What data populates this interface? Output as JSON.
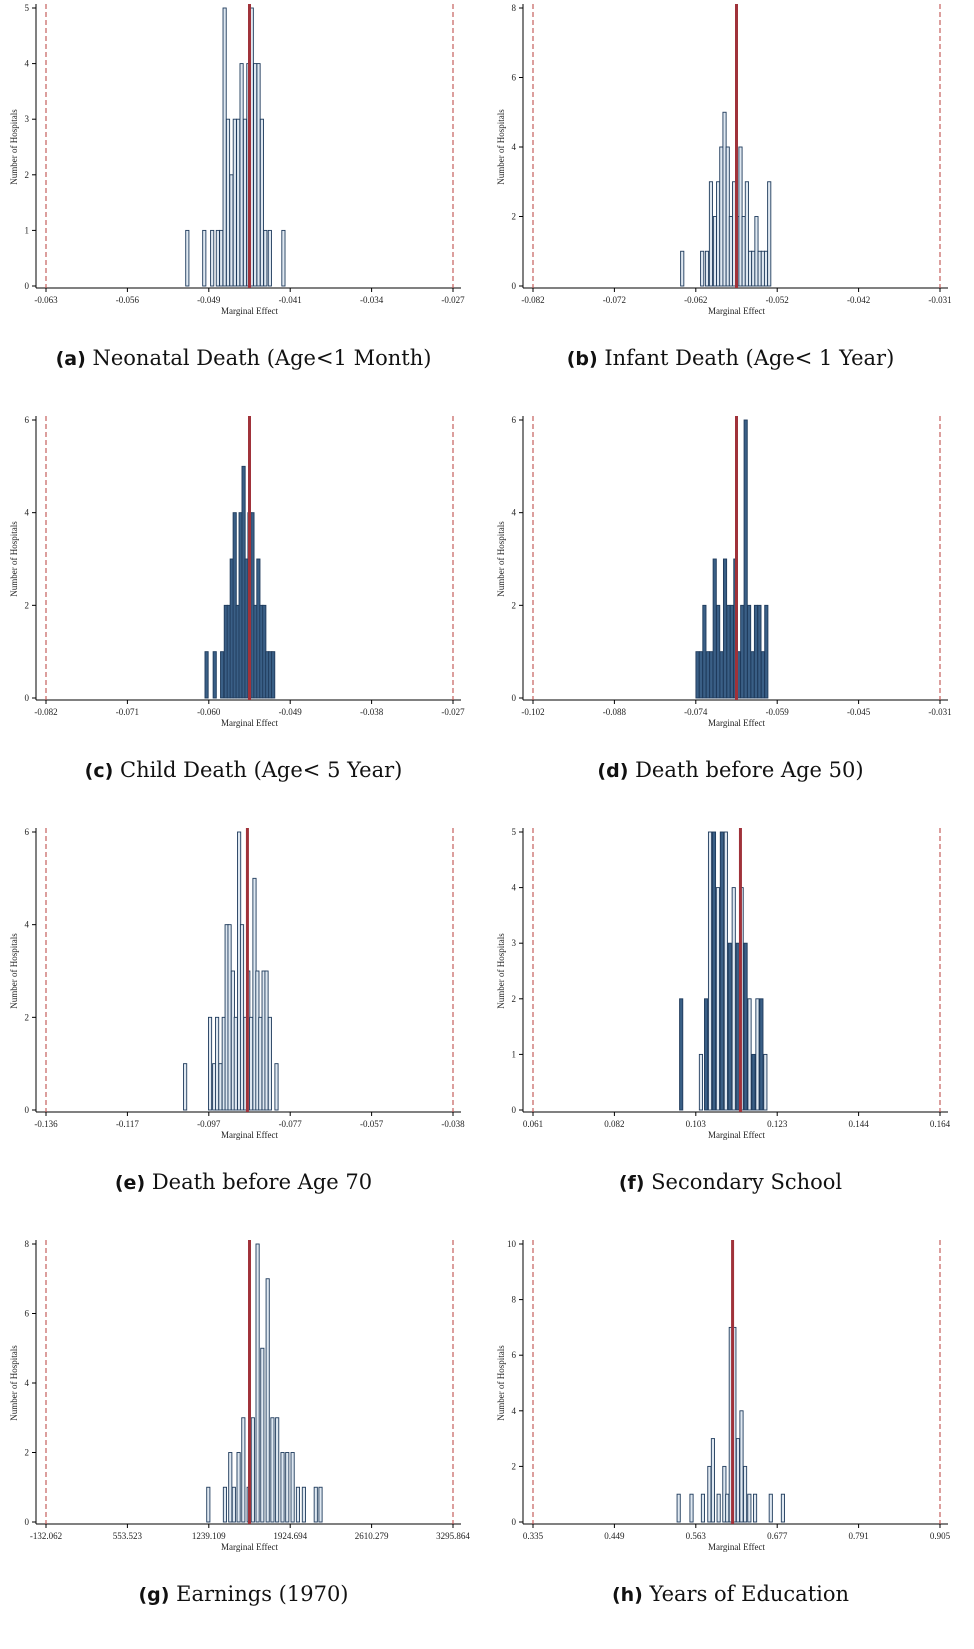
{
  "ylabel": "Number of Hospitals",
  "xlabel": "Marginal Effect",
  "colors": {
    "bar_fill_light": "#dfe8f1",
    "bar_fill_dark": "#3a5f86",
    "bar_stroke": "#1f3b5c",
    "estimate_line": "#a0323a",
    "bound_line": "#c0504d"
  },
  "chart_data": [
    {
      "type": "bar",
      "panel_label": "(a)",
      "title": "Neonatal Death (Age<1 Month)",
      "xticks": [
        "-0.063",
        "-0.056",
        "-0.049",
        "-0.041",
        "-0.034",
        "-0.027"
      ],
      "xlim": [
        -0.063,
        -0.027
      ],
      "ylim": [
        0,
        5
      ],
      "yticks": [
        0,
        1,
        2,
        3,
        4,
        5
      ],
      "fill": "light",
      "estimate": -0.045,
      "bounds": [
        -0.063,
        -0.027
      ],
      "bars": [
        [
          -0.0505,
          1
        ],
        [
          -0.049,
          1
        ],
        [
          -0.0483,
          1
        ],
        [
          -0.0478,
          1
        ],
        [
          -0.0475,
          1
        ],
        [
          -0.0472,
          5
        ],
        [
          -0.0469,
          3
        ],
        [
          -0.0466,
          2
        ],
        [
          -0.0463,
          3
        ],
        [
          -0.046,
          3
        ],
        [
          -0.0457,
          4
        ],
        [
          -0.0454,
          3
        ],
        [
          -0.0451,
          4
        ],
        [
          -0.0448,
          5
        ],
        [
          -0.0445,
          4
        ],
        [
          -0.0442,
          4
        ],
        [
          -0.0439,
          3
        ],
        [
          -0.0436,
          1
        ],
        [
          -0.0432,
          1
        ],
        [
          -0.042,
          1
        ]
      ]
    },
    {
      "type": "bar",
      "panel_label": "(b)",
      "title": "Infant Death (Age< 1 Year)",
      "xticks": [
        "-0.082",
        "-0.072",
        "-0.062",
        "-0.052",
        "-0.042",
        "-0.031"
      ],
      "xlim": [
        -0.082,
        -0.031
      ],
      "ylim": [
        0,
        8
      ],
      "yticks": [
        0,
        2,
        4,
        6,
        8
      ],
      "fill": "light",
      "estimate": -0.0565,
      "bounds": [
        -0.082,
        -0.031
      ],
      "bars": [
        [
          -0.0633,
          1
        ],
        [
          -0.0608,
          1
        ],
        [
          -0.0602,
          1
        ],
        [
          -0.0597,
          3
        ],
        [
          -0.0592,
          2
        ],
        [
          -0.0588,
          3
        ],
        [
          -0.0584,
          4
        ],
        [
          -0.058,
          5
        ],
        [
          -0.0576,
          4
        ],
        [
          -0.0572,
          2
        ],
        [
          -0.0568,
          3
        ],
        [
          -0.0564,
          2
        ],
        [
          -0.056,
          4
        ],
        [
          -0.0556,
          2
        ],
        [
          -0.0552,
          3
        ],
        [
          -0.0548,
          1
        ],
        [
          -0.0544,
          1
        ],
        [
          -0.054,
          2
        ],
        [
          -0.0536,
          1
        ],
        [
          -0.0532,
          1
        ],
        [
          -0.0528,
          1
        ],
        [
          -0.0524,
          3
        ]
      ]
    },
    {
      "type": "bar",
      "panel_label": "(c)",
      "title": "Child Death (Age< 5 Year)",
      "xticks": [
        "-0.082",
        "-0.071",
        "-0.060",
        "-0.049",
        "-0.038",
        "-0.027"
      ],
      "xlim": [
        -0.082,
        -0.027
      ],
      "ylim": [
        0,
        6
      ],
      "yticks": [
        0,
        2,
        4,
        6
      ],
      "fill": "dark",
      "estimate": -0.0545,
      "bounds": [
        -0.082,
        -0.027
      ],
      "bars": [
        [
          -0.0603,
          1
        ],
        [
          -0.0592,
          1
        ],
        [
          -0.0582,
          1
        ],
        [
          -0.0577,
          2
        ],
        [
          -0.0573,
          2
        ],
        [
          -0.0569,
          3
        ],
        [
          -0.0565,
          4
        ],
        [
          -0.0561,
          2
        ],
        [
          -0.0557,
          4
        ],
        [
          -0.0553,
          5
        ],
        [
          -0.0549,
          3
        ],
        [
          -0.0545,
          4
        ],
        [
          -0.0541,
          4
        ],
        [
          -0.0537,
          2
        ],
        [
          -0.0533,
          3
        ],
        [
          -0.0529,
          2
        ],
        [
          -0.0525,
          2
        ],
        [
          -0.0521,
          1
        ],
        [
          -0.0517,
          1
        ],
        [
          -0.0513,
          1
        ]
      ]
    },
    {
      "type": "bar",
      "panel_label": "(d)",
      "title": "Death before Age 50)",
      "xticks": [
        "-0.102",
        "-0.088",
        "-0.074",
        "-0.059",
        "-0.045",
        "-0.031"
      ],
      "xlim": [
        -0.102,
        -0.031
      ],
      "ylim": [
        0,
        6
      ],
      "yticks": [
        0,
        2,
        4,
        6
      ],
      "fill": "dark",
      "estimate": -0.0665,
      "bounds": [
        -0.102,
        -0.031
      ],
      "bars": [
        [
          -0.0733,
          1
        ],
        [
          -0.0727,
          1
        ],
        [
          -0.0721,
          2
        ],
        [
          -0.0715,
          1
        ],
        [
          -0.0709,
          1
        ],
        [
          -0.0703,
          3
        ],
        [
          -0.0697,
          2
        ],
        [
          -0.0691,
          1
        ],
        [
          -0.0685,
          3
        ],
        [
          -0.0679,
          2
        ],
        [
          -0.0673,
          2
        ],
        [
          -0.0667,
          3
        ],
        [
          -0.0661,
          1
        ],
        [
          -0.0655,
          2
        ],
        [
          -0.0649,
          6
        ],
        [
          -0.0643,
          2
        ],
        [
          -0.0637,
          1
        ],
        [
          -0.0631,
          2
        ],
        [
          -0.0625,
          2
        ],
        [
          -0.0619,
          1
        ],
        [
          -0.0613,
          2
        ]
      ]
    },
    {
      "type": "bar",
      "panel_label": "(e)",
      "title": "Death before Age 70",
      "xticks": [
        "-0.136",
        "-0.117",
        "-0.097",
        "-0.077",
        "-0.057",
        "-0.038"
      ],
      "xlim": [
        -0.136,
        -0.038
      ],
      "ylim": [
        0,
        6
      ],
      "yticks": [
        0,
        2,
        4,
        6
      ],
      "fill": "light",
      "estimate": -0.0875,
      "bounds": [
        -0.136,
        -0.038
      ],
      "bars": [
        [
          -0.1025,
          1
        ],
        [
          -0.0965,
          2
        ],
        [
          -0.0955,
          1
        ],
        [
          -0.0948,
          2
        ],
        [
          -0.094,
          1
        ],
        [
          -0.0932,
          2
        ],
        [
          -0.0925,
          4
        ],
        [
          -0.0918,
          4
        ],
        [
          -0.091,
          3
        ],
        [
          -0.0903,
          2
        ],
        [
          -0.0895,
          6
        ],
        [
          -0.0888,
          4
        ],
        [
          -0.088,
          2
        ],
        [
          -0.0873,
          3
        ],
        [
          -0.0866,
          2
        ],
        [
          -0.0858,
          5
        ],
        [
          -0.0851,
          3
        ],
        [
          -0.0844,
          2
        ],
        [
          -0.0836,
          3
        ],
        [
          -0.0829,
          3
        ],
        [
          -0.0821,
          2
        ],
        [
          -0.0805,
          1
        ]
      ]
    },
    {
      "type": "bar",
      "panel_label": "(f)",
      "title": "Secondary School",
      "xticks": [
        "0.061",
        "0.082",
        "0.103",
        "0.123",
        "0.144",
        "0.164"
      ],
      "xlim": [
        0.061,
        0.164
      ],
      "ylim": [
        0,
        5
      ],
      "yticks": [
        0,
        1,
        2,
        3,
        4,
        5
      ],
      "fill": "mixed",
      "estimate": 0.1135,
      "bounds": [
        0.061,
        0.164
      ],
      "bars": [
        [
          0.0985,
          2
        ],
        [
          0.1035,
          1
        ],
        [
          0.1048,
          2
        ],
        [
          0.1058,
          5
        ],
        [
          0.1068,
          5
        ],
        [
          0.1078,
          4
        ],
        [
          0.1088,
          5
        ],
        [
          0.1098,
          5
        ],
        [
          0.1108,
          3
        ],
        [
          0.1118,
          4
        ],
        [
          0.1128,
          3
        ],
        [
          0.1138,
          4
        ],
        [
          0.1148,
          3
        ],
        [
          0.1158,
          2
        ],
        [
          0.1168,
          1
        ],
        [
          0.1178,
          2
        ],
        [
          0.1188,
          2
        ],
        [
          0.1198,
          1
        ]
      ]
    },
    {
      "type": "bar",
      "panel_label": "(g)",
      "title": "Earnings (1970)",
      "xticks": [
        "-132.062",
        "553.523",
        "1239.109",
        "1924.694",
        "2610.279",
        "3295.864"
      ],
      "xlim": [
        -132.062,
        3295.864
      ],
      "ylim": [
        0,
        8
      ],
      "yticks": [
        0,
        2,
        4,
        6,
        8
      ],
      "fill": "light",
      "estimate": 1582,
      "bounds": [
        -132.062,
        3295.864
      ],
      "bars": [
        [
          1235,
          1
        ],
        [
          1375,
          1
        ],
        [
          1420,
          2
        ],
        [
          1450,
          1
        ],
        [
          1490,
          2
        ],
        [
          1530,
          3
        ],
        [
          1575,
          1
        ],
        [
          1610,
          3
        ],
        [
          1650,
          8
        ],
        [
          1690,
          5
        ],
        [
          1735,
          7
        ],
        [
          1775,
          3
        ],
        [
          1815,
          3
        ],
        [
          1860,
          2
        ],
        [
          1900,
          2
        ],
        [
          1945,
          2
        ],
        [
          1990,
          1
        ],
        [
          2040,
          1
        ],
        [
          2140,
          1
        ],
        [
          2180,
          1
        ]
      ]
    },
    {
      "type": "bar",
      "panel_label": "(h)",
      "title": "Years of Education",
      "xticks": [
        "0.335",
        "0.449",
        "0.563",
        "0.677",
        "0.791",
        "0.905"
      ],
      "xlim": [
        0.335,
        0.905
      ],
      "ylim": [
        0,
        10
      ],
      "yticks": [
        0,
        2,
        4,
        6,
        8,
        10
      ],
      "fill": "light",
      "estimate": 0.6145,
      "bounds": [
        0.335,
        0.905
      ],
      "bars": [
        [
          0.539,
          1
        ],
        [
          0.557,
          1
        ],
        [
          0.573,
          1
        ],
        [
          0.582,
          2
        ],
        [
          0.587,
          3
        ],
        [
          0.595,
          1
        ],
        [
          0.603,
          2
        ],
        [
          0.607,
          1
        ],
        [
          0.612,
          7
        ],
        [
          0.617,
          7
        ],
        [
          0.622,
          3
        ],
        [
          0.627,
          4
        ],
        [
          0.632,
          2
        ],
        [
          0.638,
          1
        ],
        [
          0.646,
          1
        ],
        [
          0.668,
          1
        ],
        [
          0.685,
          1
        ]
      ]
    }
  ]
}
